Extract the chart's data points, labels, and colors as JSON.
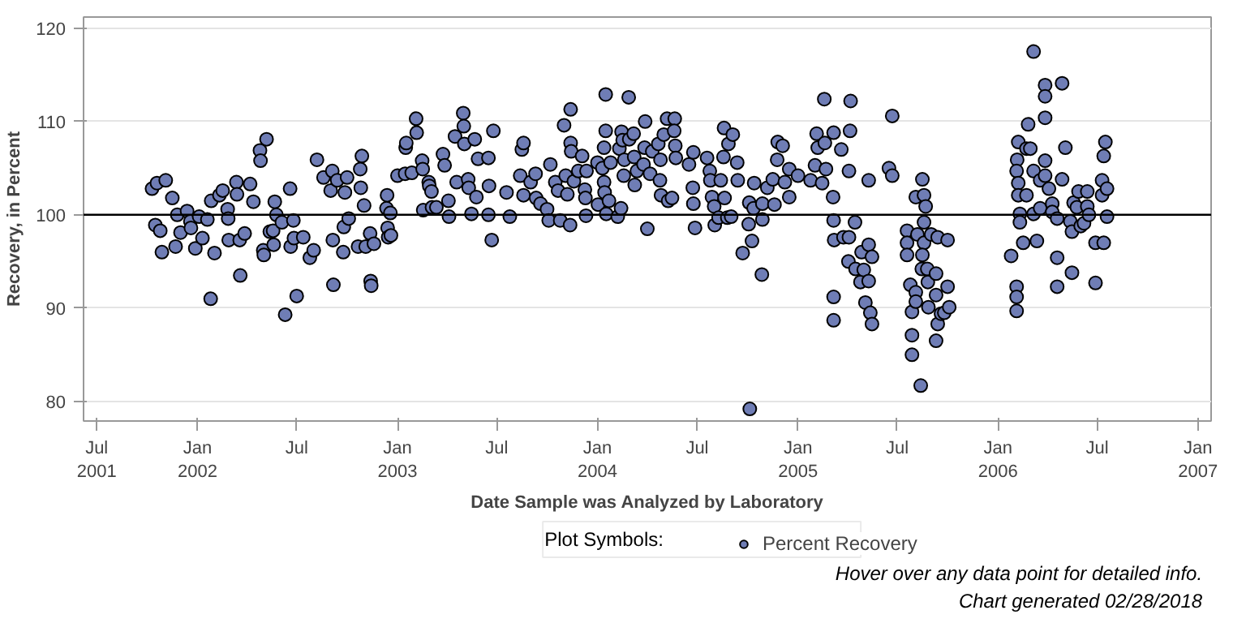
{
  "chart_data": {
    "type": "scatter",
    "xlabel": "Date Sample was Analyzed by Laboratory",
    "ylabel": "Recovery, in Percent",
    "legend_title": "Plot Symbols:",
    "legend": "bottom",
    "grid": "y",
    "marker": "circle",
    "annotations": [
      "Hover over any data point for detailed info.",
      "Chart generated 02/28/2018"
    ],
    "xlim": [
      "2001-06-07",
      "2007-01-25"
    ],
    "xticks": [
      {
        "value": "2001-07-01",
        "label": "Jul\n2001"
      },
      {
        "value": "2002-01-01",
        "label": "Jan\n2002"
      },
      {
        "value": "2002-07-01",
        "label": "Jul"
      },
      {
        "value": "2003-01-01",
        "label": "Jan\n2003"
      },
      {
        "value": "2003-07-01",
        "label": "Jul"
      },
      {
        "value": "2004-01-01",
        "label": "Jan\n2004"
      },
      {
        "value": "2004-07-01",
        "label": "Jul"
      },
      {
        "value": "2005-01-01",
        "label": "Jan\n2005"
      },
      {
        "value": "2005-07-01",
        "label": "Jul"
      },
      {
        "value": "2006-01-01",
        "label": "Jan\n2006"
      },
      {
        "value": "2006-07-01",
        "label": "Jul"
      },
      {
        "value": "2007-01-01",
        "label": "Jan\n2007"
      }
    ],
    "ylim": [
      77.9,
      121.2
    ],
    "yticks": [
      80,
      90,
      100,
      110,
      120
    ],
    "ref_lines": [
      {
        "axis": "y",
        "value": 100,
        "color": "#000000"
      }
    ],
    "series": [
      {
        "name": "Percent Recovery",
        "color": "#6f7db5",
        "x": [
          "2001-10-10",
          "2001-10-19",
          "2001-11-04",
          "2001-10-16",
          "2001-10-25",
          "2001-10-28",
          "2001-11-16",
          "2001-11-25",
          "2001-11-22",
          "2001-12-01",
          "2001-12-13",
          "2001-12-19",
          "2001-12-20",
          "2001-12-28",
          "2002-01-04",
          "2002-01-10",
          "2002-01-19",
          "2002-01-25",
          "2002-01-26",
          "2002-02-01",
          "2002-02-10",
          "2002-02-16",
          "2002-02-25",
          "2002-02-26",
          "2002-02-27",
          "2002-03-13",
          "2002-03-14",
          "2002-03-19",
          "2002-03-20",
          "2002-03-28",
          "2002-04-07",
          "2002-04-13",
          "2002-04-25",
          "2002-04-26",
          "2002-05-07",
          "2002-05-01",
          "2002-05-02",
          "2002-05-13",
          "2002-05-19",
          "2002-05-20",
          "2002-05-22",
          "2002-05-25",
          "2002-06-04",
          "2002-06-10",
          "2002-06-19",
          "2002-06-20",
          "2002-06-25",
          "2002-06-26",
          "2002-07-01",
          "2002-07-13",
          "2002-07-25",
          "2002-08-01",
          "2002-08-07",
          "2002-08-19",
          "2002-09-01",
          "2002-09-04",
          "2002-09-05",
          "2002-09-06",
          "2002-09-13",
          "2002-09-25",
          "2002-09-24",
          "2002-09-27",
          "2002-10-01",
          "2002-10-04",
          "2002-10-21",
          "2002-10-25",
          "2002-10-26",
          "2002-10-28",
          "2002-11-01",
          "2002-11-04",
          "2002-11-13",
          "2002-11-14",
          "2002-11-12",
          "2002-11-19",
          "2002-12-13",
          "2002-12-12",
          "2002-12-14",
          "2002-12-15",
          "2002-12-19",
          "2002-12-20",
          "2003-01-01",
          "2003-01-15",
          "2003-01-16",
          "2003-01-17",
          "2003-01-27",
          "2003-02-04",
          "2003-02-05",
          "2003-02-15",
          "2003-02-16",
          "2003-02-17",
          "2003-02-27",
          "2003-02-28",
          "2003-03-04",
          "2003-03-05",
          "2003-03-13",
          "2003-03-25",
          "2003-03-28",
          "2003-04-04",
          "2003-04-05",
          "2003-04-16",
          "2003-04-19",
          "2003-05-01",
          "2003-05-02",
          "2003-05-03",
          "2003-05-10",
          "2003-05-11",
          "2003-05-16",
          "2003-05-22",
          "2003-05-28",
          "2003-05-25",
          "2003-06-16",
          "2003-06-17",
          "2003-06-25",
          "2003-06-22",
          "2003-06-16",
          "2003-07-19",
          "2003-07-25",
          "2003-08-16",
          "2003-08-19",
          "2003-08-13",
          "2003-08-19",
          "2003-09-01",
          "2003-09-10",
          "2003-09-11",
          "2003-09-19",
          "2003-10-01",
          "2003-10-07",
          "2003-10-04",
          "2003-10-16",
          "2003-10-21",
          "2003-10-25",
          "2003-11-01",
          "2003-11-04",
          "2003-11-07",
          "2003-11-13",
          "2003-11-13",
          "2003-11-14",
          "2003-11-12",
          "2003-11-19",
          "2003-11-27",
          "2003-12-04",
          "2003-12-09",
          "2003-12-10",
          "2003-12-11",
          "2003-12-12",
          "2004-01-01",
          "2004-01-02",
          "2004-01-10",
          "2004-01-13",
          "2004-01-16",
          "2004-01-16",
          "2004-01-13",
          "2004-01-14",
          "2004-01-17",
          "2004-01-22",
          "2004-01-25",
          "2004-02-07",
          "2004-02-10",
          "2004-02-13",
          "2004-02-14",
          "2004-02-16",
          "2004-02-18",
          "2004-02-19",
          "2004-02-27",
          "2004-02-28",
          "2004-03-07",
          "2004-03-08",
          "2004-03-09",
          "2004-03-13",
          "2004-03-28",
          "2004-03-27",
          "2004-03-25",
          "2004-04-01",
          "2004-04-06",
          "2004-04-10",
          "2004-04-21",
          "2004-04-25",
          "2004-04-24",
          "2004-05-01",
          "2004-05-07",
          "2004-04-26",
          "2004-05-09",
          "2004-05-16",
          "2004-05-21",
          "2004-05-20",
          "2004-05-22",
          "2004-05-23",
          "2004-06-16",
          "2004-06-24",
          "2004-06-23",
          "2004-06-24",
          "2004-06-27",
          "2004-07-19",
          "2004-07-24",
          "2004-07-25",
          "2004-07-28",
          "2004-08-01",
          "2004-08-02",
          "2004-08-09",
          "2004-08-13",
          "2004-08-19",
          "2004-08-18",
          "2004-08-20",
          "2004-08-25",
          "2004-08-27",
          "2004-09-04",
          "2004-09-12",
          "2004-09-13",
          "2004-09-01",
          "2004-09-22",
          "2004-10-04",
          "2004-10-03",
          "2004-10-05",
          "2004-10-09",
          "2004-10-13",
          "2004-10-12",
          "2004-10-28",
          "2004-10-27",
          "2004-10-28",
          "2004-11-06",
          "2004-11-16",
          "2004-11-19",
          "2004-11-25",
          "2004-11-24",
          "2004-12-04",
          "2004-12-08",
          "2004-12-16",
          "2004-12-16",
          "2005-01-01",
          "2005-01-24",
          "2005-02-01",
          "2005-02-04",
          "2005-02-06",
          "2005-02-14",
          "2005-02-18",
          "2005-02-19",
          "2005-02-21",
          "2005-03-06",
          "2005-03-07",
          "2005-03-07",
          "2005-03-07",
          "2005-03-07",
          "2005-03-08",
          "2005-03-21",
          "2005-03-25",
          "2005-04-04",
          "2005-04-07",
          "2005-04-06",
          "2005-04-04",
          "2005-04-15",
          "2005-04-03",
          "2005-04-16",
          "2005-04-27",
          "2005-04-25",
          "2005-05-01",
          "2005-05-04",
          "2005-05-10",
          "2005-05-10",
          "2005-05-10",
          "2005-05-13",
          "2005-05-16",
          "2005-05-16",
          "2005-06-22",
          "2005-06-16",
          "2005-06-22",
          "2005-07-19",
          "2005-07-19",
          "2005-07-19",
          "2005-07-25",
          "2005-07-28",
          "2005-07-28",
          "2005-07-28",
          "2005-08-04",
          "2005-08-04",
          "2005-08-07",
          "2005-08-04",
          "2005-08-13",
          "2005-08-16",
          "2005-08-19",
          "2005-08-22",
          "2005-08-19",
          "2005-08-19",
          "2005-08-16",
          "2005-08-15",
          "2005-08-25",
          "2005-08-26",
          "2005-08-27",
          "2005-09-01",
          "2005-09-10",
          "2005-09-10",
          "2005-09-10",
          "2005-09-13",
          "2005-09-13",
          "2005-09-19",
          "2005-09-25",
          "2005-10-01",
          "2005-10-01",
          "2005-10-04",
          "2006-01-25",
          "2006-02-04",
          "2006-02-04",
          "2006-02-04",
          "2006-02-05",
          "2006-02-04",
          "2006-02-07",
          "2006-02-07",
          "2006-02-07",
          "2006-02-10",
          "2006-02-10",
          "2006-02-16",
          "2006-02-22",
          "2006-02-22",
          "2006-02-25",
          "2006-03-01",
          "2006-03-07",
          "2006-03-07",
          "2006-03-07",
          "2006-03-13",
          "2006-03-19",
          "2006-03-19",
          "2006-03-28",
          "2006-03-28",
          "2006-03-28",
          "2006-03-28",
          "2006-03-28",
          "2006-04-04",
          "2006-04-10",
          "2006-04-10",
          "2006-04-19",
          "2006-04-19",
          "2006-04-19",
          "2006-04-28",
          "2006-04-28",
          "2006-05-04",
          "2006-05-13",
          "2006-05-16",
          "2006-05-16",
          "2006-05-19",
          "2006-05-25",
          "2006-05-28",
          "2006-06-01",
          "2006-06-07",
          "2006-06-13",
          "2006-06-13",
          "2006-06-16",
          "2006-06-28",
          "2006-06-28",
          "2006-07-13",
          "2006-07-10",
          "2006-07-10",
          "2006-07-13",
          "2006-07-16",
          "2006-07-19",
          "2006-07-19"
        ],
        "values": [
          102.8,
          103.4,
          103.7,
          98.9,
          98.3,
          96.0,
          101.8,
          100.0,
          96.6,
          98.1,
          100.4,
          99.3,
          98.6,
          96.4,
          99.8,
          97.5,
          99.5,
          91.0,
          101.5,
          95.9,
          102.1,
          102.6,
          100.6,
          99.6,
          97.3,
          103.5,
          102.2,
          97.3,
          93.5,
          98.0,
          103.3,
          101.4,
          106.9,
          105.8,
          108.1,
          96.2,
          95.7,
          98.2,
          98.3,
          96.8,
          101.4,
          100.0,
          99.2,
          89.3,
          102.8,
          96.6,
          99.4,
          97.5,
          91.3,
          97.6,
          95.4,
          96.2,
          105.9,
          104.0,
          102.6,
          104.7,
          97.3,
          92.5,
          103.7,
          98.7,
          96.0,
          102.4,
          104.0,
          99.6,
          96.6,
          104.9,
          102.9,
          106.3,
          101.0,
          96.6,
          92.9,
          92.4,
          98.0,
          96.9,
          102.1,
          100.7,
          98.6,
          97.6,
          100.2,
          97.8,
          104.2,
          104.4,
          107.2,
          107.7,
          104.5,
          110.3,
          108.8,
          105.8,
          104.9,
          100.5,
          103.5,
          103.1,
          102.5,
          100.8,
          100.8,
          106.5,
          105.3,
          101.5,
          99.8,
          108.4,
          103.5,
          110.9,
          109.5,
          107.6,
          103.8,
          102.9,
          100.1,
          108.1,
          106.0,
          101.9,
          106.1,
          103.1,
          109.0,
          97.3,
          100.0,
          102.4,
          99.8,
          107.0,
          107.7,
          104.2,
          102.1,
          103.5,
          104.4,
          101.8,
          101.2,
          100.6,
          105.4,
          99.4,
          103.5,
          102.6,
          99.4,
          109.6,
          104.2,
          102.2,
          111.3,
          107.7,
          106.8,
          98.9,
          103.6,
          104.7,
          106.3,
          102.7,
          101.8,
          99.9,
          104.7,
          105.6,
          101.1,
          105.0,
          107.2,
          109.0,
          112.9,
          103.5,
          102.4,
          100.1,
          101.5,
          105.6,
          99.8,
          107.1,
          100.7,
          108.9,
          108.0,
          104.2,
          105.9,
          112.6,
          108.1,
          108.7,
          106.2,
          103.2,
          104.7,
          110.0,
          107.2,
          105.4,
          98.5,
          104.4,
          106.8,
          107.6,
          105.9,
          103.7,
          108.6,
          110.3,
          102.1,
          101.5,
          101.8,
          110.3,
          109.0,
          107.4,
          106.1,
          105.4,
          106.7,
          102.9,
          101.2,
          98.6,
          106.1,
          104.7,
          103.7,
          101.9,
          100.9,
          98.9,
          99.7,
          103.7,
          109.3,
          106.2,
          101.8,
          99.7,
          107.6,
          108.6,
          105.6,
          103.7,
          99.8,
          95.9,
          101.3,
          99.0,
          79.2,
          97.2,
          103.4,
          100.7,
          101.2,
          93.6,
          99.5,
          102.9,
          103.8,
          101.1,
          107.8,
          105.9,
          107.4,
          103.5,
          101.9,
          104.9,
          104.2,
          103.7,
          105.3,
          108.7,
          107.2,
          103.4,
          112.4,
          107.7,
          104.9,
          101.9,
          108.8,
          99.4,
          91.2,
          88.7,
          97.3,
          107.0,
          97.6,
          104.7,
          112.2,
          109.0,
          97.6,
          99.2,
          95.0,
          94.2,
          96.0,
          92.8,
          94.1,
          90.6,
          92.9,
          96.8,
          103.7,
          89.5,
          95.5,
          88.3,
          110.6,
          105.0,
          104.2,
          98.3,
          97.0,
          95.7,
          92.5,
          89.6,
          87.1,
          85.0,
          91.7,
          90.7,
          97.9,
          101.9,
          81.7,
          103.8,
          102.1,
          100.9,
          99.2,
          97.0,
          95.7,
          94.2,
          94.2,
          92.8,
          90.1,
          97.9,
          93.7,
          91.4,
          86.5,
          97.6,
          88.3,
          89.4,
          89.5,
          97.3,
          92.3,
          90.1,
          95.6,
          92.3,
          91.2,
          89.7,
          105.9,
          104.7,
          107.8,
          103.4,
          102.1,
          100.1,
          99.2,
          97.0,
          107.1,
          102.1,
          109.7,
          107.1,
          104.7,
          100.1,
          117.5,
          97.2,
          100.7,
          103.7,
          113.9,
          112.7,
          110.4,
          105.8,
          104.2,
          102.8,
          101.2,
          100.3,
          99.6,
          95.4,
          92.3,
          114.1,
          103.8,
          107.2,
          99.3,
          98.2,
          93.8,
          101.3,
          100.8,
          102.5,
          98.8,
          99.1,
          102.5,
          100.9,
          100.0,
          97.0,
          92.7,
          97.0,
          103.7,
          102.1,
          106.3,
          107.8,
          102.8,
          99.8
        ]
      }
    ]
  }
}
